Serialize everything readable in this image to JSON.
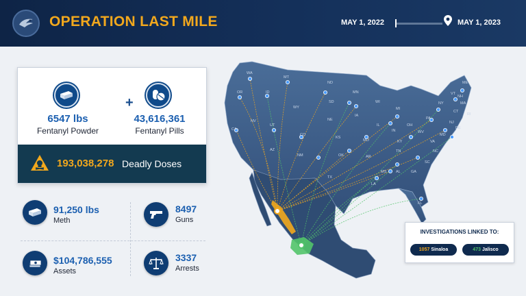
{
  "header": {
    "title": "OPERATION LAST MILE",
    "date_start": "MAY 1, 2022",
    "date_end": "MAY 1, 2023",
    "colors": {
      "background": "#14305a",
      "accent": "#f2a81d"
    }
  },
  "seizures": {
    "powder": {
      "value": "6547 lbs",
      "label": "Fentanyl Powder",
      "icon": "powder-brick-icon"
    },
    "pills": {
      "value": "43,616,361",
      "label": "Fentanyl Pills",
      "icon": "pill-icon"
    },
    "plus": "+",
    "doses": {
      "value": "193,038,278",
      "label": "Deadly Doses",
      "icon": "hazard-skull-icon"
    }
  },
  "stats": {
    "meth": {
      "value": "91,250 lbs",
      "label": "Meth",
      "icon": "meth-brick-icon"
    },
    "guns": {
      "value": "8497",
      "label": "Guns",
      "icon": "gun-icon"
    },
    "assets": {
      "value": "$104,786,555",
      "label": "Assets",
      "icon": "cash-icon"
    },
    "arrests": {
      "value": "3337",
      "label": "Arrests",
      "icon": "scales-icon"
    }
  },
  "map": {
    "state_labels": [
      "WA",
      "MT",
      "ND",
      "OR",
      "ID",
      "SD",
      "MN",
      "WI",
      "MI",
      "NY",
      "ME",
      "VT",
      "NH",
      "MA",
      "RI",
      "CT",
      "NJ",
      "DE",
      "MD",
      "PA",
      "OH",
      "IN",
      "IL",
      "IA",
      "NE",
      "WY",
      "UT",
      "NV",
      "CA",
      "CO",
      "KS",
      "MO",
      "KY",
      "WV",
      "VA",
      "TN",
      "NC",
      "SC",
      "GA",
      "AL",
      "MS",
      "AR",
      "OK",
      "TX",
      "NM",
      "AZ",
      "LA",
      "FL"
    ],
    "colors": {
      "sinaloa": "#f2a81d",
      "jalisco": "#52c46a",
      "land": "#3a5a85",
      "mexico": "#2f4c73"
    }
  },
  "investigations": {
    "title": "INVESTIGATIONS LINKED TO:",
    "sinaloa": {
      "count": "1057",
      "name": "Sinaloa"
    },
    "jalisco": {
      "count": "473",
      "name": "Jalisco"
    }
  }
}
